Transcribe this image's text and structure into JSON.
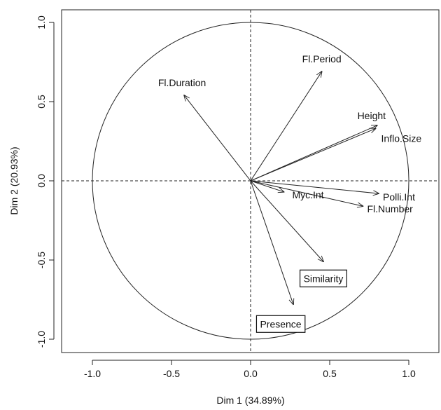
{
  "chart_data": {
    "type": "scatter",
    "subtype": "pca-correlation-circle",
    "xlabel": "Dim 1 (34.89%)",
    "ylabel": "Dim 2 (20.93%)",
    "xlim": [
      -1.2,
      1.2
    ],
    "ylim": [
      -1.08,
      1.08
    ],
    "x_ticks": [
      -1.0,
      -0.5,
      0.0,
      0.5,
      1.0
    ],
    "x_tick_labels": [
      "-1.0",
      "-0.5",
      "0.0",
      "0.5",
      "1.0"
    ],
    "y_ticks": [
      -1.0,
      -0.5,
      0.0,
      0.5,
      1.0
    ],
    "y_tick_labels": [
      "-1.0",
      "-0.5",
      "0.0",
      "0.5",
      "1.0"
    ],
    "unit_circle": true,
    "reference_lines": "dashed at x=0 and y=0",
    "grid": false,
    "vectors": [
      {
        "name": "Fl.Period",
        "x": 0.45,
        "y": 0.69,
        "boxed": false
      },
      {
        "name": "Fl.Duration",
        "x": -0.42,
        "y": 0.54,
        "boxed": false
      },
      {
        "name": "Height",
        "x": 0.8,
        "y": 0.35,
        "boxed": false
      },
      {
        "name": "Inflo.Size",
        "x": 0.79,
        "y": 0.33,
        "boxed": false
      },
      {
        "name": "Myc.Int",
        "x": 0.21,
        "y": -0.07,
        "boxed": false
      },
      {
        "name": "Polli.Int",
        "x": 0.81,
        "y": -0.08,
        "boxed": false
      },
      {
        "name": "Fl.Number",
        "x": 0.71,
        "y": -0.16,
        "boxed": false
      },
      {
        "name": "Similarity",
        "x": 0.46,
        "y": -0.51,
        "boxed": true
      },
      {
        "name": "Presence",
        "x": 0.27,
        "y": -0.78,
        "boxed": true
      }
    ]
  }
}
